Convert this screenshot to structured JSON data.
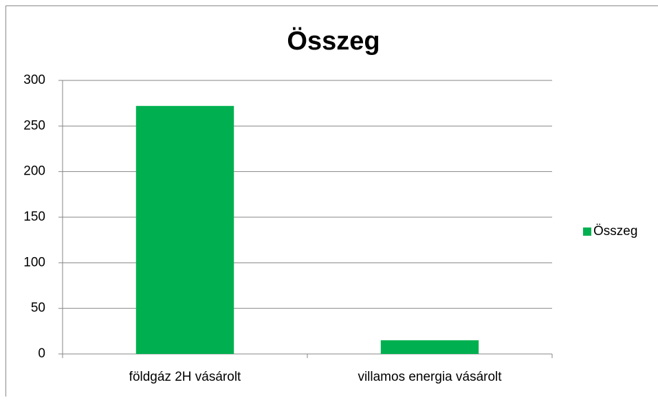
{
  "chart_data": {
    "type": "bar",
    "title": "Összeg",
    "categories": [
      "földgáz 2H vásárolt",
      "villamos energia vásárolt"
    ],
    "series": [
      {
        "name": "Összeg",
        "color": "#00b050",
        "values": [
          272,
          15
        ]
      }
    ],
    "ylim": [
      0,
      300
    ],
    "yticks": [
      0,
      50,
      100,
      150,
      200,
      250,
      300
    ],
    "grid": true,
    "legend": "right"
  }
}
